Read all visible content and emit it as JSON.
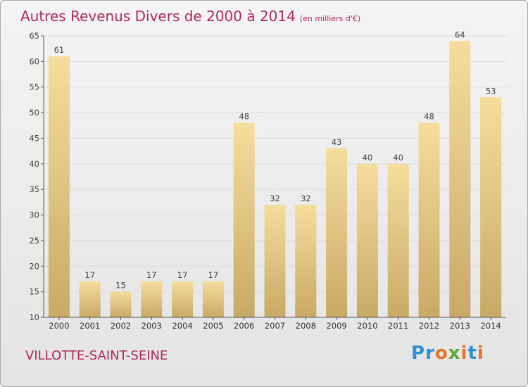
{
  "title": "Autres Revenus Divers de 2000 à 2014",
  "subtitle": "(en milliers d'€)",
  "town": "VILLOTTE-SAINT-SEINE",
  "logo": {
    "letters": [
      "P",
      "r",
      "o",
      "x",
      "i",
      "t",
      "i"
    ],
    "colors": [
      "#2f8fd0",
      "#2f8fd0",
      "#e8742a",
      "#5aa834",
      "#e8742a",
      "#2f8fd0",
      "#e8742a"
    ]
  },
  "colors": {
    "title": "#b1285d",
    "bar_light": "#f5dd9c",
    "bar_dark": "#c9a966",
    "grid": "#dcdcdc",
    "axis": "#555555"
  },
  "chart_data": {
    "type": "bar",
    "title": "Autres Revenus Divers de 2000 à 2014",
    "subtitle": "(en milliers d'€)",
    "categories": [
      "2000",
      "2001",
      "2002",
      "2003",
      "2004",
      "2005",
      "2006",
      "2007",
      "2008",
      "2009",
      "2010",
      "2011",
      "2012",
      "2013",
      "2014"
    ],
    "values": [
      61,
      17,
      15,
      17,
      17,
      17,
      48,
      32,
      32,
      43,
      40,
      40,
      48,
      64,
      53
    ],
    "ylim": [
      10,
      65
    ],
    "yticks": [
      10,
      15,
      20,
      25,
      30,
      35,
      40,
      45,
      50,
      55,
      60,
      65
    ],
    "grid": true,
    "data_labels": true
  }
}
